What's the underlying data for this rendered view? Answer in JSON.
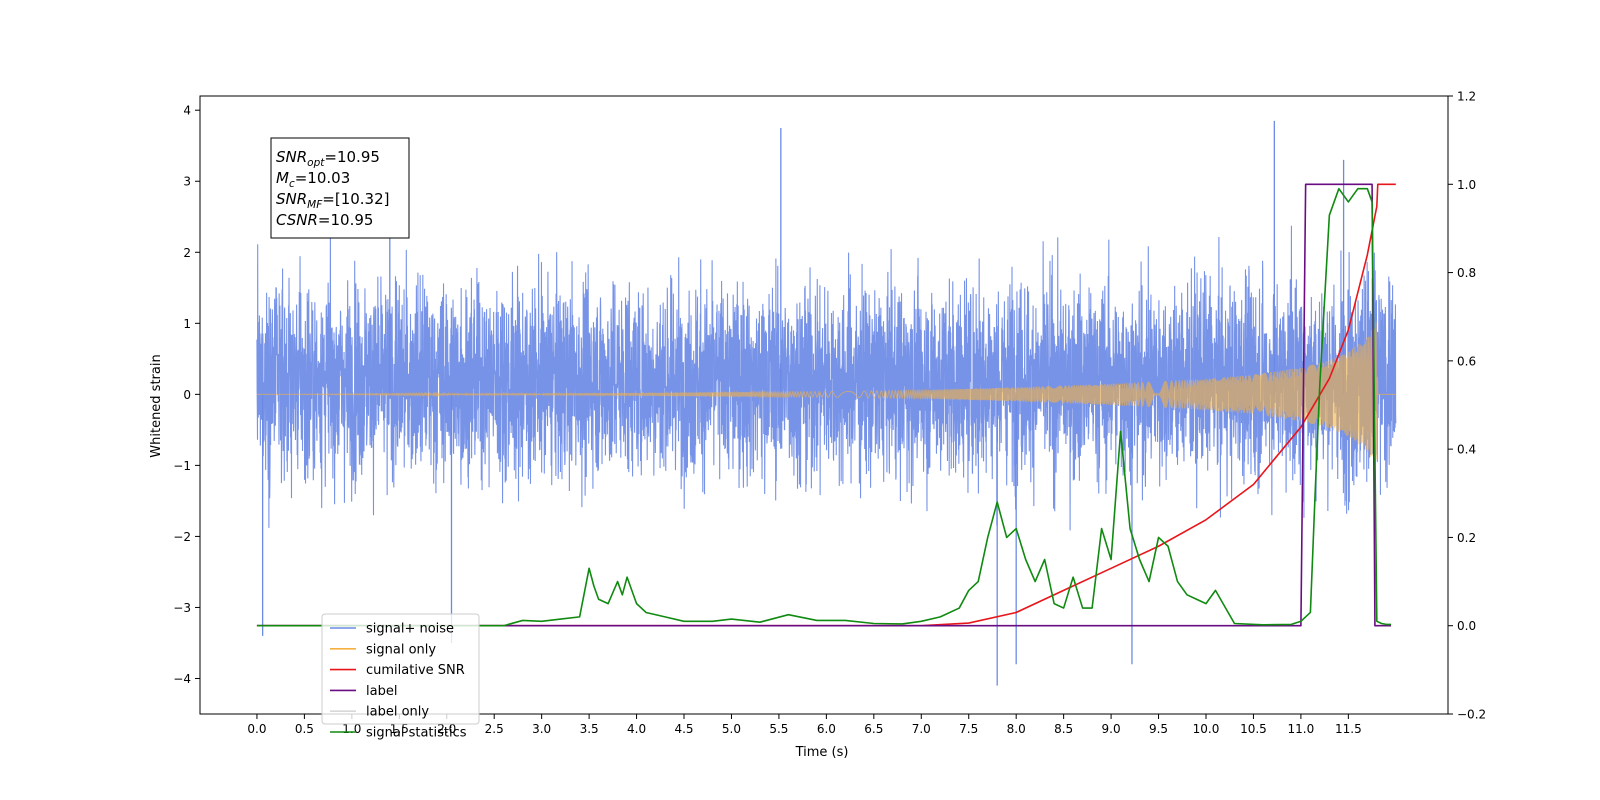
{
  "chart_data": {
    "type": "line",
    "xlabel": "Time (s)",
    "ylabel": "Whitened strain",
    "xlim": [
      -0.6,
      12.55
    ],
    "ylim": [
      -4.5,
      4.2
    ],
    "y2lim": [
      -0.2,
      1.2
    ],
    "x_ticks": [
      0.0,
      0.5,
      1.0,
      1.5,
      2.0,
      2.5,
      3.0,
      3.5,
      4.0,
      4.5,
      5.0,
      5.5,
      6.0,
      6.5,
      7.0,
      7.5,
      8.0,
      8.5,
      9.0,
      9.5,
      10.0,
      10.5,
      11.0,
      11.5
    ],
    "x_tick_labels": [
      "0.0",
      "0.5",
      "1.0",
      "1.5",
      "2.0",
      "2.5",
      "3.0",
      "3.5",
      "4.0",
      "4.5",
      "5.0",
      "5.5",
      "6.0",
      "6.5",
      "7.0",
      "7.5",
      "8.0",
      "8.5",
      "9.0",
      "9.5",
      "10.0",
      "10.5",
      "11.0",
      "11.5"
    ],
    "y_ticks": [
      -4,
      -3,
      -2,
      -1,
      0,
      1,
      2,
      3,
      4
    ],
    "y_tick_labels": [
      "−4",
      "−3",
      "−2",
      "−1",
      "0",
      "1",
      "2",
      "3",
      "4"
    ],
    "y2_ticks": [
      -0.2,
      0.0,
      0.2,
      0.4,
      0.6,
      0.8,
      1.0,
      1.2
    ],
    "y2_tick_labels": [
      "−0.2",
      "0.0",
      "0.2",
      "0.4",
      "0.6",
      "0.8",
      "1.0",
      "1.2"
    ],
    "grid": false,
    "legend_position": "lower-left",
    "annotation": {
      "lines": [
        {
          "base": "SNR",
          "sub": "opt",
          "value": "=10.95"
        },
        {
          "base": "M",
          "sub": "c",
          "value": "=10.03"
        },
        {
          "base": "SNR",
          "sub": "MF",
          "value": "=[10.32]"
        },
        {
          "base": "CSNR",
          "sub": "",
          "value": "=10.95"
        }
      ]
    },
    "series": [
      {
        "name": "signal+ noise",
        "axis": "left",
        "color": "#6b8ae6",
        "x_start": 0.0,
        "x_end": 12.0,
        "noise_band": [
          -1.9,
          2.3
        ],
        "outlier_peaks": [
          {
            "x": 5.52,
            "y": 3.75
          },
          {
            "x": 10.72,
            "y": 3.85
          },
          {
            "x": 7.8,
            "y": -4.1
          },
          {
            "x": 9.22,
            "y": -3.8
          },
          {
            "x": 0.06,
            "y": -3.4
          },
          {
            "x": 1.4,
            "y": 3.3
          },
          {
            "x": 11.45,
            "y": 3.3
          },
          {
            "x": 8.0,
            "y": -3.8
          },
          {
            "x": 2.05,
            "y": -3.5
          }
        ]
      },
      {
        "name": "signal only",
        "axis": "left",
        "color": "#f5b041",
        "envelope_x": [
          0.0,
          2.0,
          4.0,
          6.0,
          7.0,
          8.0,
          9.0,
          10.0,
          10.5,
          11.0,
          11.3,
          11.5,
          11.7,
          11.8,
          11.81,
          12.0
        ],
        "envelope_amplitude": [
          0.0,
          0.01,
          0.02,
          0.04,
          0.06,
          0.1,
          0.15,
          0.22,
          0.28,
          0.38,
          0.48,
          0.6,
          0.8,
          1.05,
          0.0,
          0.0
        ]
      },
      {
        "name": "cumilative SNR",
        "axis": "right",
        "color": "#e8161b",
        "x": [
          0.0,
          7.0,
          7.5,
          8.0,
          8.5,
          9.0,
          9.5,
          10.0,
          10.5,
          11.0,
          11.3,
          11.5,
          11.7,
          11.8,
          11.81,
          12.0
        ],
        "y": [
          0.0,
          0.0,
          0.006,
          0.03,
          0.08,
          0.13,
          0.18,
          0.24,
          0.32,
          0.45,
          0.56,
          0.67,
          0.84,
          0.95,
          1.0,
          1.0
        ]
      },
      {
        "name": "label",
        "axis": "right",
        "color": "#6a0d83",
        "x": [
          0.0,
          11.0,
          11.05,
          11.75,
          11.78,
          11.95
        ],
        "y": [
          0.0,
          0.0,
          1.0,
          1.0,
          0.0,
          0.0
        ]
      },
      {
        "name": "label only",
        "axis": "right",
        "color": "#d8d8d8",
        "x": [],
        "y": []
      },
      {
        "name": "signal statistics",
        "axis": "right",
        "color": "#118a11",
        "x": [
          0.0,
          2.6,
          2.8,
          3.0,
          3.2,
          3.4,
          3.5,
          3.55,
          3.6,
          3.7,
          3.8,
          3.85,
          3.9,
          4.0,
          4.1,
          4.3,
          4.5,
          4.8,
          5.0,
          5.3,
          5.6,
          5.9,
          6.2,
          6.5,
          6.8,
          7.0,
          7.2,
          7.4,
          7.5,
          7.6,
          7.7,
          7.8,
          7.9,
          8.0,
          8.1,
          8.2,
          8.3,
          8.4,
          8.5,
          8.6,
          8.7,
          8.8,
          8.9,
          9.0,
          9.1,
          9.2,
          9.3,
          9.4,
          9.5,
          9.6,
          9.7,
          9.8,
          9.9,
          10.0,
          10.1,
          10.3,
          10.6,
          10.9,
          11.0,
          11.1,
          11.15,
          11.2,
          11.3,
          11.4,
          11.5,
          11.6,
          11.7,
          11.75,
          11.8,
          11.85,
          11.9,
          11.95
        ],
        "y": [
          0.0,
          0.0,
          0.012,
          0.01,
          0.015,
          0.02,
          0.13,
          0.09,
          0.06,
          0.05,
          0.1,
          0.07,
          0.11,
          0.05,
          0.03,
          0.02,
          0.01,
          0.01,
          0.015,
          0.008,
          0.025,
          0.012,
          0.012,
          0.005,
          0.004,
          0.01,
          0.02,
          0.04,
          0.08,
          0.1,
          0.2,
          0.28,
          0.2,
          0.22,
          0.15,
          0.1,
          0.15,
          0.05,
          0.04,
          0.11,
          0.04,
          0.04,
          0.22,
          0.15,
          0.44,
          0.22,
          0.15,
          0.1,
          0.2,
          0.18,
          0.1,
          0.07,
          0.06,
          0.05,
          0.08,
          0.005,
          0.002,
          0.003,
          0.01,
          0.03,
          0.3,
          0.55,
          0.93,
          0.99,
          0.96,
          0.99,
          0.99,
          0.96,
          0.01,
          0.005,
          0.003,
          0.003
        ]
      }
    ]
  }
}
